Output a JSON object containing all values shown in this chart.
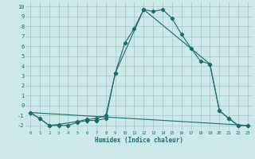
{
  "xlabel": "Humidex (Indice chaleur)",
  "xlim": [
    -0.5,
    23.5
  ],
  "ylim": [
    -2.5,
    10.5
  ],
  "xticks": [
    0,
    1,
    2,
    3,
    4,
    5,
    6,
    7,
    8,
    9,
    10,
    11,
    12,
    13,
    14,
    15,
    16,
    17,
    18,
    19,
    20,
    21,
    22,
    23
  ],
  "yticks": [
    -2,
    -1,
    0,
    1,
    2,
    3,
    4,
    5,
    6,
    7,
    8,
    9,
    10
  ],
  "bg_color": "#cde8e8",
  "grid_color": "#aacccc",
  "line_color": "#1a6b6b",
  "line1_x": [
    0,
    1,
    2,
    3,
    4,
    5,
    6,
    7,
    8,
    9,
    10,
    11,
    12,
    13,
    14,
    15,
    16,
    17,
    18,
    19,
    20,
    21,
    22,
    23
  ],
  "line1_y": [
    -0.7,
    -1.3,
    -2.0,
    -2.0,
    -2.0,
    -1.7,
    -1.5,
    -1.5,
    -1.3,
    3.3,
    6.3,
    7.8,
    9.7,
    9.5,
    9.7,
    8.8,
    7.2,
    5.8,
    4.5,
    4.2,
    -0.5,
    -1.3,
    -2.0,
    -2.0
  ],
  "line2_x": [
    0,
    1,
    2,
    3,
    5,
    6,
    7,
    8,
    9,
    12,
    19,
    20,
    21,
    22,
    23
  ],
  "line2_y": [
    -0.7,
    -1.3,
    -2.0,
    -1.9,
    -1.6,
    -1.4,
    -1.3,
    -1.0,
    3.3,
    9.7,
    4.2,
    -0.5,
    -1.3,
    -2.0,
    -2.0
  ],
  "line3_x": [
    0,
    23
  ],
  "line3_y": [
    -0.7,
    -2.0
  ]
}
